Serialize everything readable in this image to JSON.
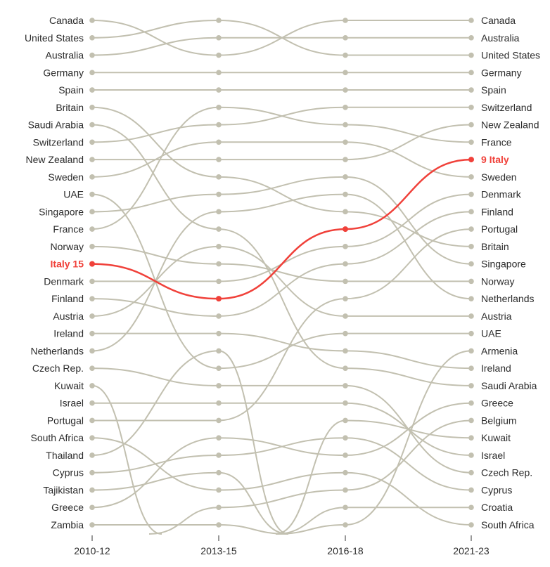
{
  "chart_data": {
    "type": "bump",
    "periods": [
      "2010-12",
      "2013-15",
      "2016-18",
      "2021-23"
    ],
    "rank_range": [
      1,
      30
    ],
    "highlight": {
      "country": "Italy",
      "color": "#f0413a",
      "start_label": "Italy 15",
      "end_label": "9 Italy"
    },
    "line_color": "#c2c0b0",
    "series": [
      {
        "name": "Canada",
        "ranks": [
          1,
          3,
          1,
          1
        ]
      },
      {
        "name": "United States",
        "ranks": [
          2,
          1,
          3,
          3
        ]
      },
      {
        "name": "Australia",
        "ranks": [
          3,
          2,
          2,
          2
        ]
      },
      {
        "name": "Germany",
        "ranks": [
          4,
          4,
          4,
          4
        ]
      },
      {
        "name": "Spain",
        "ranks": [
          5,
          5,
          5,
          5
        ]
      },
      {
        "name": "Britain",
        "ranks": [
          6,
          10,
          12,
          14
        ]
      },
      {
        "name": "Saudi Arabia",
        "ranks": [
          7,
          13,
          21,
          22
        ]
      },
      {
        "name": "Switzerland",
        "ranks": [
          8,
          7,
          6,
          6
        ]
      },
      {
        "name": "New Zealand",
        "ranks": [
          9,
          9,
          9,
          7
        ]
      },
      {
        "name": "Sweden",
        "ranks": [
          10,
          8,
          8,
          10
        ]
      },
      {
        "name": "UAE",
        "ranks": [
          11,
          21,
          19,
          19
        ]
      },
      {
        "name": "Singapore",
        "ranks": [
          12,
          11,
          10,
          15
        ]
      },
      {
        "name": "France",
        "ranks": [
          13,
          6,
          7,
          8
        ]
      },
      {
        "name": "Norway",
        "ranks": [
          14,
          15,
          16,
          16
        ]
      },
      {
        "name": "Italy",
        "ranks": [
          15,
          17,
          13,
          9
        ]
      },
      {
        "name": "Denmark",
        "ranks": [
          16,
          16,
          14,
          11
        ]
      },
      {
        "name": "Finland",
        "ranks": [
          17,
          18,
          15,
          12
        ]
      },
      {
        "name": "Austria",
        "ranks": [
          18,
          14,
          18,
          18
        ]
      },
      {
        "name": "Ireland",
        "ranks": [
          19,
          19,
          20,
          21
        ]
      },
      {
        "name": "Netherlands",
        "ranks": [
          20,
          12,
          11,
          17
        ]
      },
      {
        "name": "Czech Rep.",
        "ranks": [
          21,
          22,
          22,
          27
        ]
      },
      {
        "name": "Kuwait",
        "ranks": [
          22,
          null,
          24,
          25
        ]
      },
      {
        "name": "Israel",
        "ranks": [
          23,
          23,
          23,
          26
        ]
      },
      {
        "name": "Portugal",
        "ranks": [
          24,
          24,
          17,
          13
        ]
      },
      {
        "name": "South Africa",
        "ranks": [
          25,
          28,
          27,
          30
        ]
      },
      {
        "name": "Thailand",
        "ranks": [
          26,
          20,
          null,
          null
        ]
      },
      {
        "name": "Cyprus",
        "ranks": [
          27,
          26,
          25,
          28
        ]
      },
      {
        "name": "Tajikistan",
        "ranks": [
          28,
          27,
          null,
          null
        ]
      },
      {
        "name": "Greece",
        "ranks": [
          29,
          25,
          26,
          23
        ]
      },
      {
        "name": "Zambia",
        "ranks": [
          30,
          30,
          null,
          null
        ]
      },
      {
        "name": "Armenia",
        "ranks": [
          null,
          null,
          30,
          20
        ]
      },
      {
        "name": "Belgium",
        "ranks": [
          null,
          29,
          28,
          24
        ]
      },
      {
        "name": "Croatia",
        "ranks": [
          null,
          null,
          29,
          29
        ]
      }
    ]
  }
}
